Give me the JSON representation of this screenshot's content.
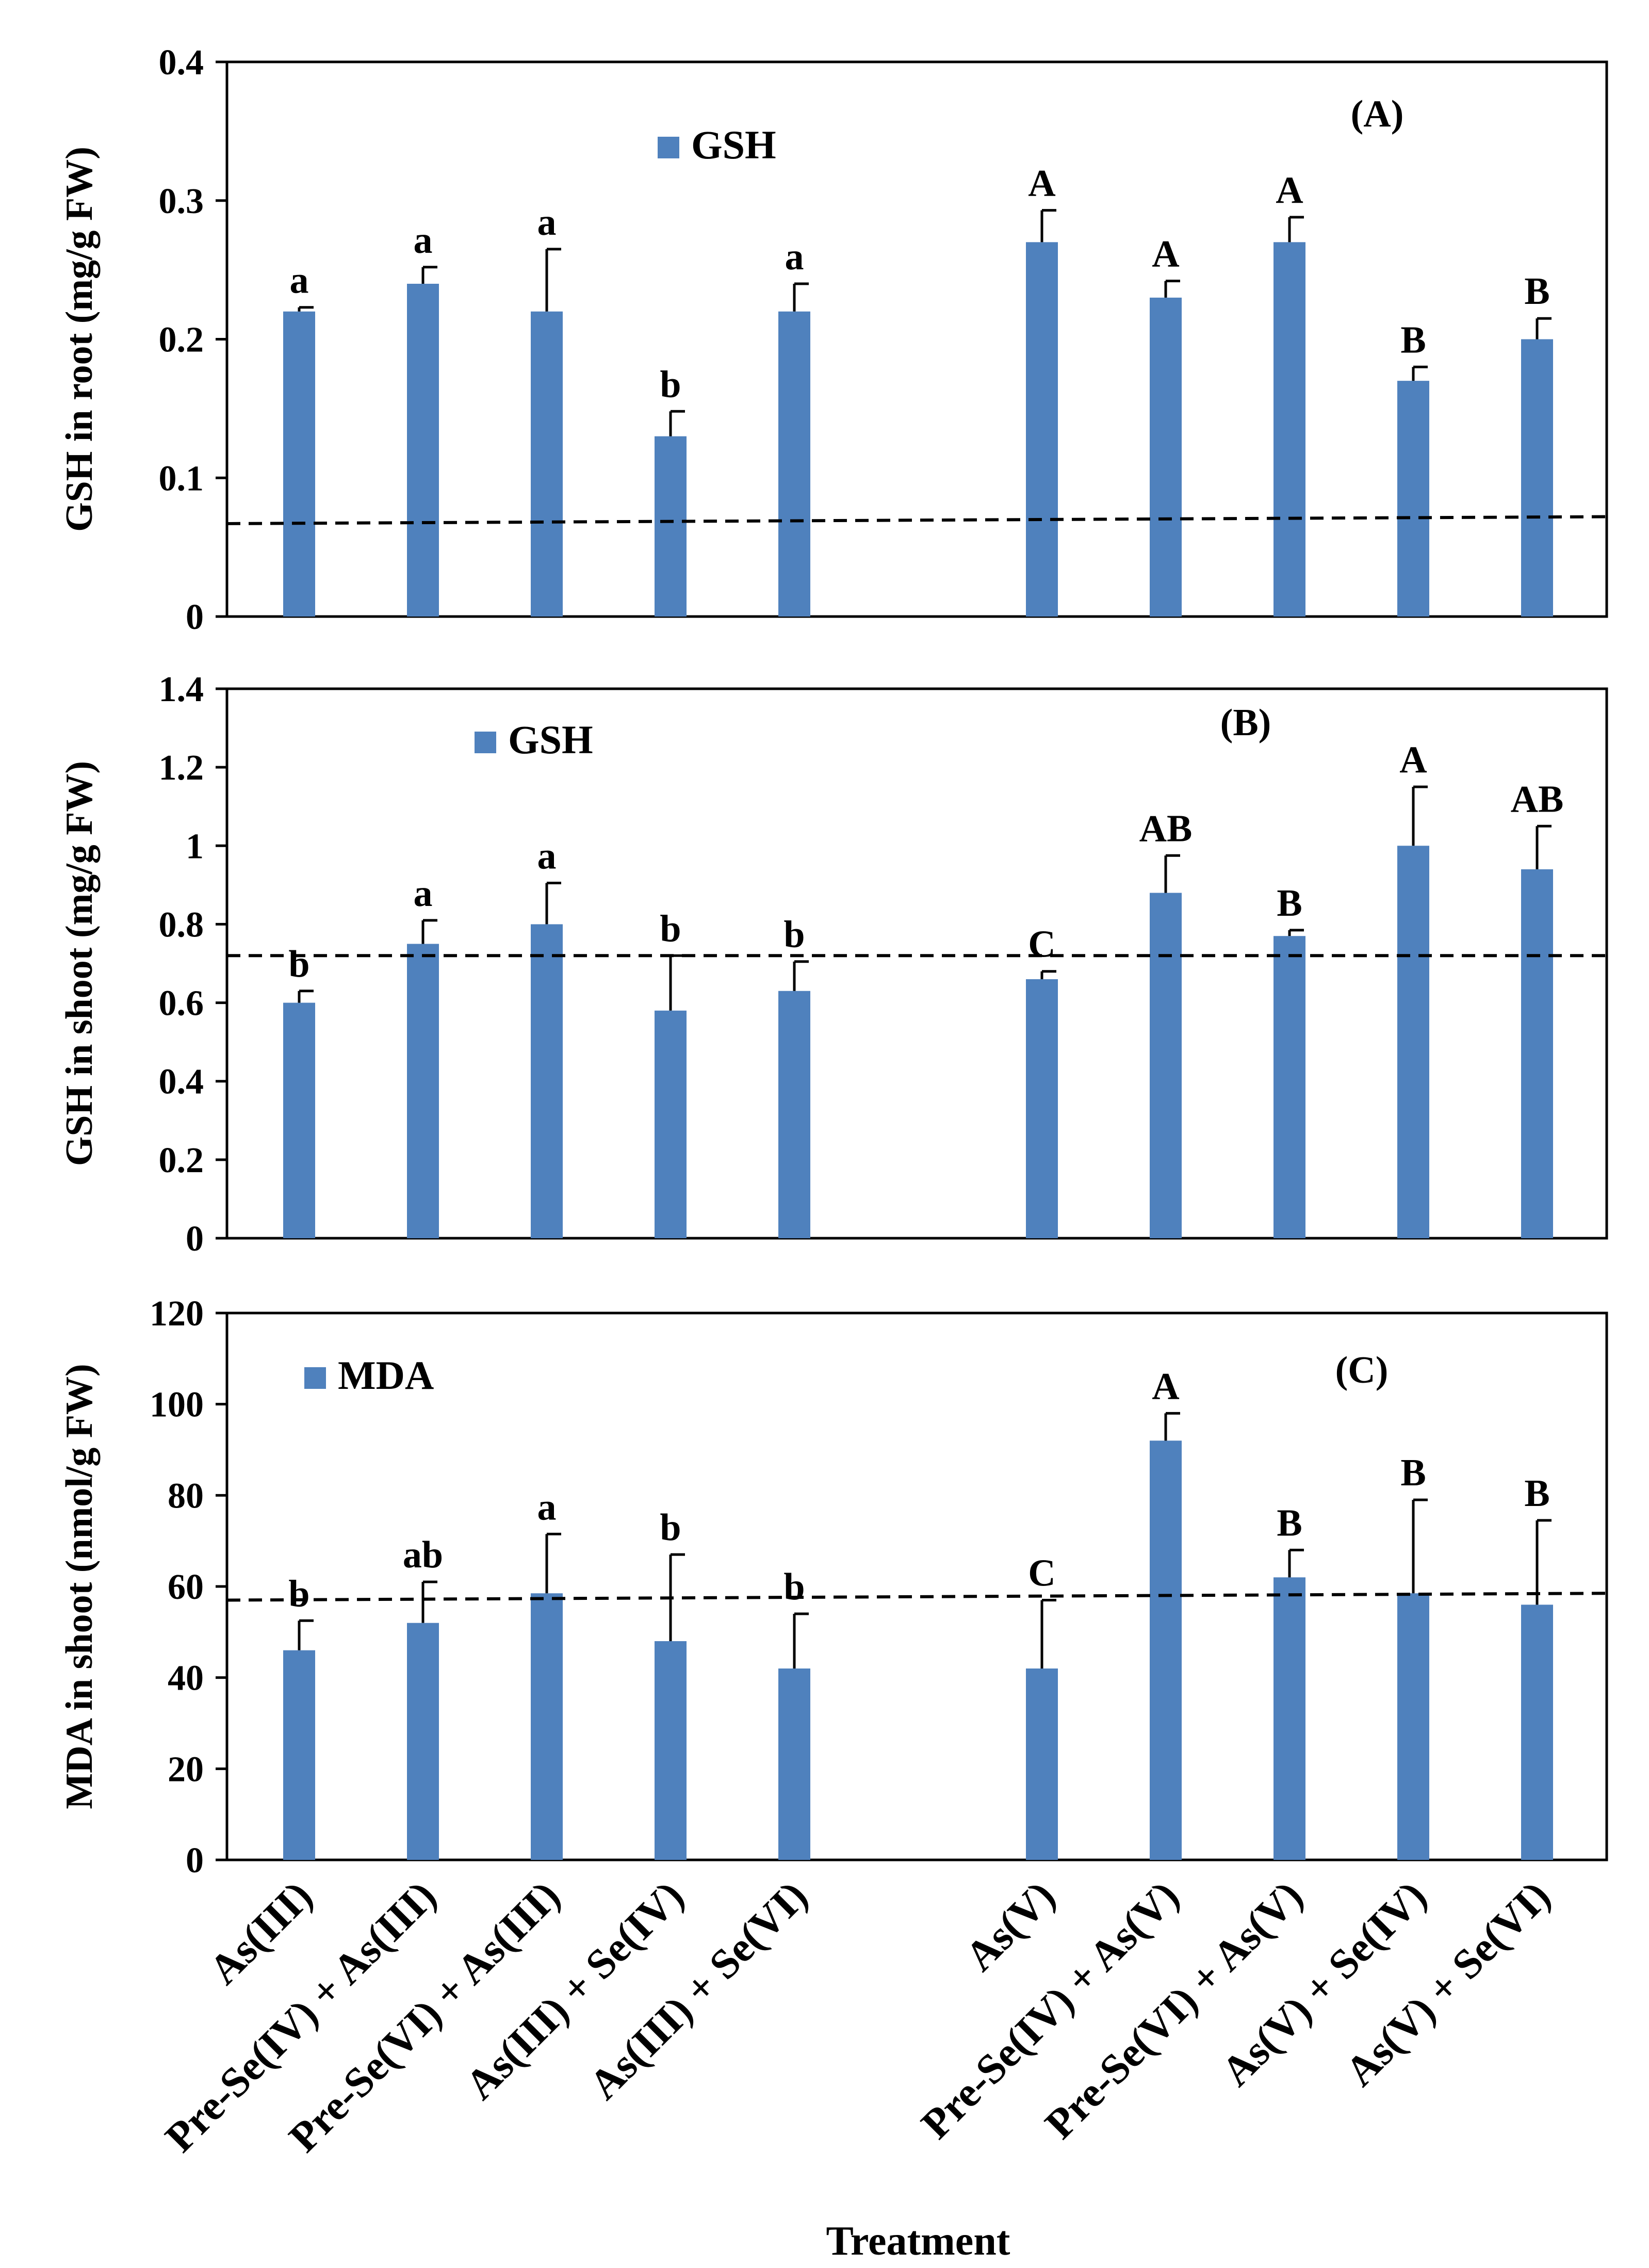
{
  "chart_data": [
    {
      "type": "bar",
      "panel": "(A)",
      "legend": "GSH",
      "ylabel": "GSH in root (mg/g FW)",
      "ylim": [
        0,
        0.4
      ],
      "yticks": [
        "0",
        "0.1",
        "0.2",
        "0.3",
        "0.4"
      ],
      "tick_values": [
        0,
        0.1,
        0.2,
        0.3,
        0.4
      ],
      "values": [
        0.22,
        0.24,
        0.22,
        0.13,
        0.22,
        0.27,
        0.23,
        0.27,
        0.17,
        0.2
      ],
      "errors": [
        0.003,
        0.012,
        0.045,
        0.018,
        0.02,
        0.023,
        0.012,
        0.018,
        0.01,
        0.015
      ],
      "letters": [
        "a",
        "a",
        "a",
        "b",
        "a",
        "A",
        "A",
        "A",
        "B",
        "B"
      ],
      "reference_line": [
        0.067,
        0.072
      ]
    },
    {
      "type": "bar",
      "panel": "(B)",
      "legend": "GSH",
      "ylabel": "GSH in shoot (mg/g FW)",
      "ylim": [
        0,
        1.4
      ],
      "yticks": [
        "0",
        "0.2",
        "0.4",
        "0.6",
        "0.8",
        "1",
        "1.2",
        "1.4"
      ],
      "tick_values": [
        0,
        0.2,
        0.4,
        0.6,
        0.8,
        1.0,
        1.2,
        1.4
      ],
      "values": [
        0.6,
        0.75,
        0.8,
        0.58,
        0.63,
        0.66,
        0.88,
        0.77,
        1.0,
        0.94
      ],
      "errors": [
        0.03,
        0.06,
        0.105,
        0.14,
        0.075,
        0.02,
        0.095,
        0.015,
        0.15,
        0.11
      ],
      "letters": [
        "b",
        "a",
        "a",
        "b",
        "b",
        "C",
        "AB",
        "B",
        "A",
        "AB"
      ],
      "reference_line": [
        0.72,
        0.72
      ]
    },
    {
      "type": "bar",
      "panel": "(C)",
      "legend": "MDA",
      "ylabel": "MDA in shoot (nmol/g FW)",
      "ylim": [
        0,
        120
      ],
      "yticks": [
        "0",
        "20",
        "40",
        "60",
        "80",
        "100",
        "120"
      ],
      "tick_values": [
        0,
        20,
        40,
        60,
        80,
        100,
        120
      ],
      "values": [
        46,
        52,
        58.5,
        48,
        42,
        42,
        92,
        62,
        58.5,
        56
      ],
      "errors": [
        6.5,
        9,
        13,
        19,
        12,
        15,
        6,
        6,
        20.5,
        18.5
      ],
      "letters": [
        "b",
        "ab",
        "a",
        "b",
        "b",
        "C",
        "A",
        "B",
        "B",
        "B"
      ],
      "reference_line": [
        57,
        58.5
      ]
    }
  ],
  "categories": [
    "As(III)",
    "Pre-Se(IV) + As(III)",
    "Pre-Se(VI) + As(III)",
    "As(III) + Se(IV)",
    "As(III) + Se(VI)",
    "As(V)",
    "Pre-Se(IV) + As(V)",
    "Pre-Se(VI) + As(V)",
    "As(V) + Se(IV)",
    "As(V) + Se(VI)"
  ],
  "xlabel": "Treatment",
  "colors": {
    "bar": "#4F81BD",
    "axis": "#000000",
    "reference": "#000000"
  }
}
